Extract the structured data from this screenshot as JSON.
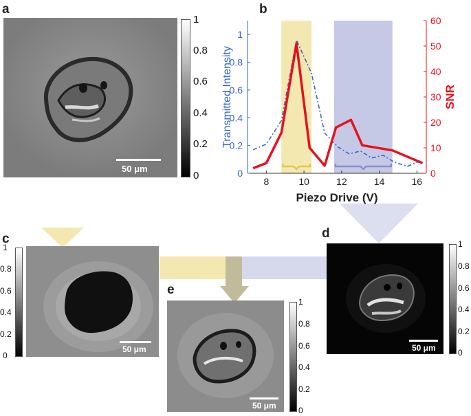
{
  "panels": {
    "a": {
      "letter": "a",
      "scalebar": "50 μm",
      "colorbar_ticks": [
        "1",
        "0.8",
        "0.6",
        "0.4",
        "0.2",
        "0"
      ]
    },
    "b": {
      "letter": "b"
    },
    "c": {
      "letter": "c",
      "scalebar": "50 μm",
      "colorbar_ticks": [
        "1",
        "0.8",
        "0.6",
        "0.4",
        "0.2",
        "0"
      ]
    },
    "d": {
      "letter": "d",
      "scalebar": "50 μm",
      "colorbar_ticks": [
        "1",
        "0.8",
        "0.6",
        "0.4",
        "0.2",
        "0"
      ]
    },
    "e": {
      "letter": "e",
      "scalebar": "50 μm",
      "colorbar_ticks": [
        "1",
        "0.8",
        "0.6",
        "0.4",
        "0.2",
        "0"
      ]
    }
  },
  "chart_data": {
    "type": "line",
    "xlabel": "Piezo Drive (V)",
    "ylabel_left": "Transmitted Intensity",
    "ylabel_right": "SNR",
    "xlim": [
      7,
      16.5
    ],
    "ylim_left": [
      0,
      1.1
    ],
    "ylim_right": [
      0,
      60
    ],
    "x_ticks": [
      "8",
      "10",
      "12",
      "14",
      "16"
    ],
    "y_left_ticks": [
      "0",
      "0.2",
      "0.4",
      "0.6",
      "0.8",
      "1"
    ],
    "y_right_ticks": [
      "0",
      "10",
      "20",
      "30",
      "40",
      "50",
      "60"
    ],
    "highlight_bands": [
      {
        "x0": 8.8,
        "x1": 10.4,
        "color": "#f3e8b0"
      },
      {
        "x0": 11.6,
        "x1": 14.7,
        "color": "#c5c9e5"
      }
    ],
    "series": [
      {
        "axis": "left",
        "color": "#3366cc",
        "style": "dashed",
        "x": [
          7.3,
          8.0,
          8.8,
          9.6,
          10.4,
          11.1,
          11.8,
          12.4,
          13.0,
          13.6,
          14.2,
          14.8,
          15.5,
          16.2
        ],
        "y": [
          0.17,
          0.21,
          0.38,
          0.96,
          0.72,
          0.29,
          0.19,
          0.14,
          0.16,
          0.11,
          0.13,
          0.08,
          0.05,
          0.09
        ]
      },
      {
        "axis": "right",
        "color": "#e8101c",
        "style": "solid",
        "x": [
          7.3,
          8.0,
          8.8,
          9.6,
          10.3,
          11.1,
          11.7,
          12.5,
          13.1,
          14.7,
          16.3
        ],
        "y": [
          2,
          4,
          16,
          51,
          10,
          3,
          18,
          21,
          11,
          9,
          4
        ]
      }
    ]
  },
  "colors": {
    "yellow": "#f3e8b0",
    "lavender": "#c5c9e5",
    "olive": "#c2bb9a",
    "blue": "#3366cc",
    "red": "#e8101c"
  }
}
